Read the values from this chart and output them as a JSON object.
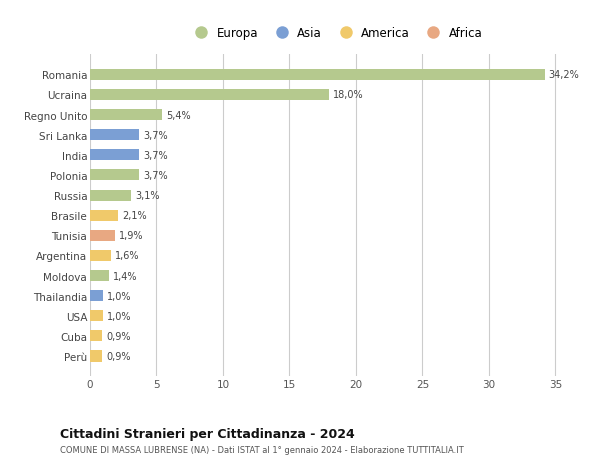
{
  "countries": [
    "Romania",
    "Ucraina",
    "Regno Unito",
    "Sri Lanka",
    "India",
    "Polonia",
    "Russia",
    "Brasile",
    "Tunisia",
    "Argentina",
    "Moldova",
    "Thailandia",
    "USA",
    "Cuba",
    "Perù"
  ],
  "values": [
    34.2,
    18.0,
    5.4,
    3.7,
    3.7,
    3.7,
    3.1,
    2.1,
    1.9,
    1.6,
    1.4,
    1.0,
    1.0,
    0.9,
    0.9
  ],
  "labels": [
    "34,2%",
    "18,0%",
    "5,4%",
    "3,7%",
    "3,7%",
    "3,7%",
    "3,1%",
    "2,1%",
    "1,9%",
    "1,6%",
    "1,4%",
    "1,0%",
    "1,0%",
    "0,9%",
    "0,9%"
  ],
  "continents": [
    "Europa",
    "Europa",
    "Europa",
    "Asia",
    "Asia",
    "Europa",
    "Europa",
    "America",
    "Africa",
    "America",
    "Europa",
    "Asia",
    "America",
    "America",
    "America"
  ],
  "colors": {
    "Europa": "#b5c98e",
    "Asia": "#7b9fd4",
    "America": "#f0c96a",
    "Africa": "#e8a882"
  },
  "title": "Cittadini Stranieri per Cittadinanza - 2024",
  "subtitle": "COMUNE DI MASSA LUBRENSE (NA) - Dati ISTAT al 1° gennaio 2024 - Elaborazione TUTTITALIA.IT",
  "xlim": [
    0,
    37
  ],
  "xticks": [
    0,
    5,
    10,
    15,
    20,
    25,
    30,
    35
  ],
  "bg_color": "#ffffff",
  "bar_height": 0.55,
  "legend_order": [
    "Europa",
    "Asia",
    "America",
    "Africa"
  ]
}
